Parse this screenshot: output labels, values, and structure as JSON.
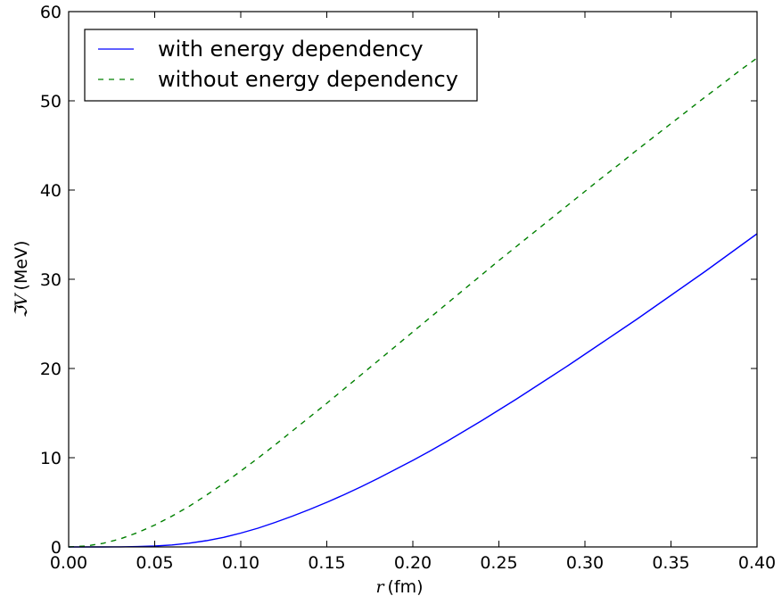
{
  "chart_data": {
    "type": "line",
    "xlabel": "r (fm)",
    "xlabel_var": "r",
    "xlabel_unit": "(fm)",
    "ylabel": "ℑV (MeV)",
    "ylabel_var": "ℑV",
    "ylabel_unit": "(MeV)",
    "xlim": [
      0.0,
      0.4
    ],
    "ylim": [
      0,
      60
    ],
    "xticks": [
      0.0,
      0.05,
      0.1,
      0.15,
      0.2,
      0.25,
      0.3,
      0.35,
      0.4
    ],
    "xtick_labels": [
      "0.00",
      "0.05",
      "0.10",
      "0.15",
      "0.20",
      "0.25",
      "0.30",
      "0.35",
      "0.40"
    ],
    "yticks": [
      0,
      10,
      20,
      30,
      40,
      50,
      60
    ],
    "ytick_labels": [
      "0",
      "10",
      "20",
      "30",
      "40",
      "50",
      "60"
    ],
    "grid": false,
    "legend_position": "top-left",
    "x": [
      0.0,
      0.01,
      0.02,
      0.03,
      0.04,
      0.05,
      0.06,
      0.07,
      0.08,
      0.09,
      0.1,
      0.11,
      0.12,
      0.13,
      0.14,
      0.15,
      0.16,
      0.17,
      0.18,
      0.19,
      0.2,
      0.21,
      0.22,
      0.23,
      0.24,
      0.25,
      0.26,
      0.27,
      0.28,
      0.29,
      0.3,
      0.31,
      0.32,
      0.33,
      0.34,
      0.35,
      0.36,
      0.37,
      0.38,
      0.39,
      0.4
    ],
    "series": [
      {
        "name": "with energy dependency",
        "color": "#0000ff",
        "style": "solid",
        "values": [
          0.0,
          0.0,
          0.0,
          0.01,
          0.04,
          0.1,
          0.22,
          0.42,
          0.7,
          1.07,
          1.55,
          2.1,
          2.75,
          3.45,
          4.2,
          5.0,
          5.85,
          6.75,
          7.7,
          8.7,
          9.7,
          10.75,
          11.85,
          13.0,
          14.15,
          15.35,
          16.55,
          17.8,
          19.05,
          20.3,
          21.6,
          22.9,
          24.2,
          25.5,
          26.85,
          28.2,
          29.55,
          30.9,
          32.3,
          33.7,
          35.1
        ]
      },
      {
        "name": "without energy dependency",
        "color": "#008000",
        "style": "dashed",
        "values": [
          0.0,
          0.1,
          0.4,
          0.9,
          1.6,
          2.45,
          3.45,
          4.55,
          5.8,
          7.1,
          8.5,
          9.95,
          11.45,
          13.0,
          14.55,
          16.1,
          17.7,
          19.3,
          20.9,
          22.5,
          24.1,
          25.7,
          27.3,
          28.9,
          30.5,
          32.1,
          33.65,
          35.2,
          36.75,
          38.3,
          39.85,
          41.4,
          42.9,
          44.45,
          45.95,
          47.45,
          48.95,
          50.45,
          51.9,
          53.4,
          54.8
        ]
      }
    ]
  }
}
